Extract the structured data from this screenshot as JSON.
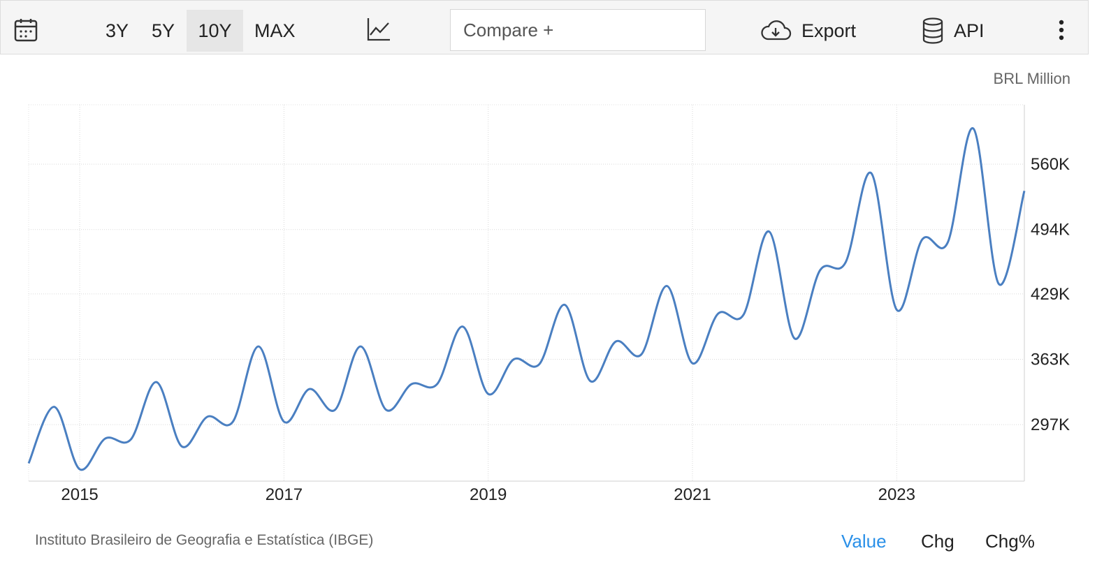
{
  "toolbar": {
    "calendar_icon": "calendar-icon",
    "ranges": [
      "3Y",
      "5Y",
      "10Y",
      "MAX"
    ],
    "active_range": "10Y",
    "chart_type_icon": "line-chart-icon",
    "compare_placeholder": "Compare +",
    "export_label": "Export",
    "api_label": "API"
  },
  "unit": "BRL Million",
  "source": "Instituto Brasileiro de Geografia e Estatística (IBGE)",
  "view_tabs": [
    "Value",
    "Chg",
    "Chg%"
  ],
  "active_view": "Value",
  "accent_color": "#2a90e8",
  "line_color": "#4a7fc1",
  "chart_data": {
    "type": "line",
    "title": "",
    "xlabel": "",
    "ylabel": "",
    "x_ticks": [
      "2015",
      "2017",
      "2019",
      "2021",
      "2023"
    ],
    "y_ticks": [
      "297K",
      "363K",
      "429K",
      "494K",
      "560K"
    ],
    "y_tick_values": [
      297,
      363,
      429,
      494,
      560
    ],
    "ylim": [
      240,
      620
    ],
    "xlim": [
      2014.5,
      2024.25
    ],
    "grid": true,
    "legend": "none",
    "series": [
      {
        "values": [
          [
            2014.5,
            258
          ],
          [
            2014.75,
            315
          ],
          [
            2015.0,
            252
          ],
          [
            2015.25,
            283
          ],
          [
            2015.5,
            282
          ],
          [
            2015.75,
            340
          ],
          [
            2016.0,
            275
          ],
          [
            2016.25,
            305
          ],
          [
            2016.5,
            300
          ],
          [
            2016.75,
            376
          ],
          [
            2017.0,
            300
          ],
          [
            2017.25,
            333
          ],
          [
            2017.5,
            312
          ],
          [
            2017.75,
            376
          ],
          [
            2018.0,
            312
          ],
          [
            2018.25,
            338
          ],
          [
            2018.5,
            338
          ],
          [
            2018.75,
            396
          ],
          [
            2019.0,
            328
          ],
          [
            2019.25,
            363
          ],
          [
            2019.5,
            358
          ],
          [
            2019.75,
            418
          ],
          [
            2020.0,
            341
          ],
          [
            2020.25,
            381
          ],
          [
            2020.5,
            368
          ],
          [
            2020.75,
            437
          ],
          [
            2021.0,
            359
          ],
          [
            2021.25,
            409
          ],
          [
            2021.5,
            408
          ],
          [
            2021.75,
            492
          ],
          [
            2022.0,
            384
          ],
          [
            2022.25,
            453
          ],
          [
            2022.5,
            461
          ],
          [
            2022.75,
            551
          ],
          [
            2023.0,
            413
          ],
          [
            2023.25,
            484
          ],
          [
            2023.5,
            481
          ],
          [
            2023.75,
            596
          ],
          [
            2024.0,
            439
          ],
          [
            2024.25,
            533
          ]
        ]
      }
    ]
  }
}
